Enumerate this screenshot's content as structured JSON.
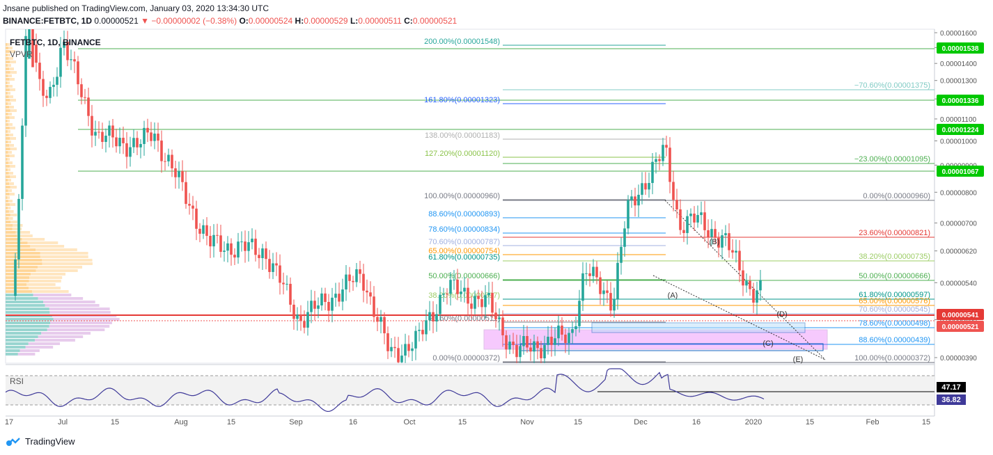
{
  "header": {
    "publisher_line": "Jnsane published on TradingView.com, January 03, 2020 13:34:30 UTC",
    "symbol_line": "BINANCE:FETBTC, 1D",
    "last": "0.00000521",
    "change": "−0.00000002 (−0.38%)",
    "o_label": "O:",
    "o": "0.00000524",
    "h_label": "H:",
    "h": "0.00000529",
    "l_label": "L:",
    "l": "0.00000511",
    "c_label": "C:",
    "c": "0.00000521"
  },
  "legend": {
    "symbol": "FETBTC, 1D, BINANCE",
    "indicator": "VPVR"
  },
  "rsi": {
    "label": "RSI",
    "value_a": "47.17",
    "value_b": "36.82"
  },
  "footer": {
    "brand": "TradingView"
  },
  "colors": {
    "up": "#26a69a",
    "down": "#ef5350",
    "green_line": "#4caf50",
    "red_line": "#e53935",
    "magenta": "#e040fb",
    "rsi": "#3f3a99"
  },
  "chart_data": {
    "type": "candlestick",
    "y_scale": "log",
    "ylim": [
      3.7e-06,
      1.61e-05
    ],
    "y_ticks": [
      "0.00001600",
      "0.00001500",
      "0.00001400",
      "0.00001300",
      "0.00001200",
      "0.00001100",
      "0.00001000",
      "0.00000900",
      "0.00000800",
      "0.00000700",
      "0.00000620",
      "0.00000540",
      "0.00000460",
      "0.00000390"
    ],
    "x_ticks": [
      "17",
      "Jul",
      "15",
      "Aug",
      "15",
      "Sep",
      "16",
      "Oct",
      "15",
      "Nov",
      "15",
      "Dec",
      "16",
      "2020",
      "15",
      "Feb",
      "15"
    ],
    "price_tags": [
      {
        "label": "0.00001538",
        "color": "#00c800"
      },
      {
        "label": "0.00001336",
        "color": "#00c800"
      },
      {
        "label": "0.00001224",
        "color": "#00c800"
      },
      {
        "label": "0.00001067",
        "color": "#00c800"
      },
      {
        "label": "0.00000541",
        "color": "#e53935"
      },
      {
        "label": "0.00000521",
        "color": "#ef5350"
      }
    ],
    "fib_left": [
      {
        "label": "200.00%(0.00001548)",
        "color": "#26a69a"
      },
      {
        "label": "161.80%(0.00001323)",
        "color": "#2962ff"
      },
      {
        "label": "138.00%(0.00001183)",
        "color": "#b0b0b0"
      },
      {
        "label": "127.20%(0.00001120)",
        "color": "#8bc34a"
      },
      {
        "label": "100.00%(0.00000960)",
        "color": "#787b86"
      },
      {
        "label": "88.60%(0.00000893)",
        "color": "#2196f3"
      },
      {
        "label": "78.60%(0.00000834)",
        "color": "#2196f3"
      },
      {
        "label": "70.60%(0.00000787)",
        "color": "#a0b0e0"
      },
      {
        "label": "65.00%(0.00000754)",
        "color": "#ff9800"
      },
      {
        "label": "61.80%(0.00000735)",
        "color": "#009688"
      },
      {
        "label": "50.00%(0.00000666)",
        "color": "#4caf50"
      },
      {
        "label": "38.20%(0.00000597)",
        "color": "#9ccc65"
      },
      {
        "label": "23.60%(0.00000511)",
        "color": "#787b86"
      },
      {
        "label": "0.00%(0.00000372)",
        "color": "#787b86"
      }
    ],
    "fib_right": [
      {
        "label": "−70.60%(0.00001375)",
        "color": "#80cbc4"
      },
      {
        "label": "−23.00%(0.00001095)",
        "color": "#4caf50"
      },
      {
        "label": "0.00%(0.00000960)",
        "color": "#787b86"
      },
      {
        "label": "23.60%(0.00000821)",
        "color": "#e53935"
      },
      {
        "label": "38.20%(0.00000735)",
        "color": "#9ccc65"
      },
      {
        "label": "50.00%(0.00000666)",
        "color": "#4caf50"
      },
      {
        "label": "61.80%(0.00000597)",
        "color": "#009688"
      },
      {
        "label": "65.00%(0.00000576)",
        "color": "#ff9800"
      },
      {
        "label": "70.60%(0.00000545)",
        "color": "#a0b0e0"
      },
      {
        "label": "78.60%(0.00000498)",
        "color": "#2196f3"
      },
      {
        "label": "88.60%(0.00000439)",
        "color": "#2196f3"
      },
      {
        "label": "100.00%(0.00000372)",
        "color": "#787b86"
      }
    ],
    "wave_labels": [
      "(A)",
      "(B)",
      "(C)",
      "(D)",
      "(E)"
    ]
  }
}
